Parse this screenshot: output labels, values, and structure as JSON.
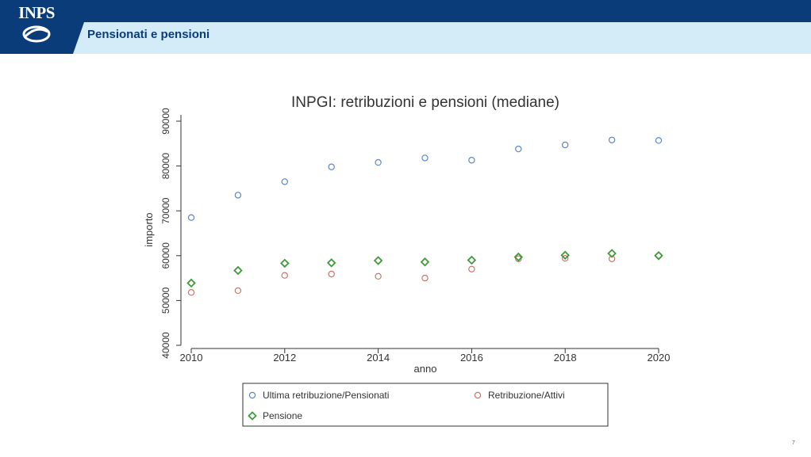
{
  "header": {
    "logo_text": "INPS",
    "section_title": "Pensionati e pensioni"
  },
  "page_number": "7",
  "colors": {
    "header_dark": "#0b3c7a",
    "header_light": "#d3ecf8",
    "series_blue": "#5a86c8",
    "series_red": "#c8766a",
    "series_green": "#3f9a38"
  },
  "chart_data": {
    "type": "scatter",
    "title": "INPGI: retribuzioni e pensioni (mediane)",
    "xlabel": "anno",
    "ylabel": "importo",
    "xlim": [
      2010,
      2020
    ],
    "ylim": [
      40000,
      90000
    ],
    "xticks": [
      2010,
      2012,
      2014,
      2016,
      2018,
      2020
    ],
    "yticks": [
      40000,
      50000,
      60000,
      70000,
      80000,
      90000
    ],
    "grid": false,
    "legend_position": "bottom",
    "x": [
      2010,
      2011,
      2012,
      2013,
      2014,
      2015,
      2016,
      2017,
      2018,
      2019,
      2020
    ],
    "series": [
      {
        "name": "Ultima retribuzione/Pensionati",
        "marker": "circle",
        "color": "#5a86c8",
        "values": [
          68500,
          73500,
          76500,
          79800,
          80800,
          81800,
          81300,
          83800,
          84700,
          85800,
          85700
        ]
      },
      {
        "name": "Retribuzione/Attivi",
        "marker": "circle",
        "color": "#c8766a",
        "values": [
          51800,
          52200,
          55600,
          55900,
          55400,
          55000,
          57000,
          59300,
          59400,
          59300,
          60000
        ]
      },
      {
        "name": "Pensione",
        "marker": "diamond",
        "color": "#3f9a38",
        "values": [
          53900,
          56700,
          58300,
          58400,
          58900,
          58600,
          59000,
          59700,
          60100,
          60500,
          60000
        ]
      }
    ]
  }
}
